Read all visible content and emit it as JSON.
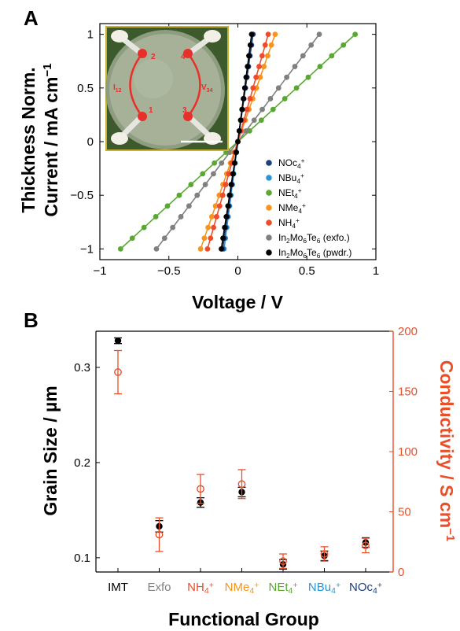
{
  "panelA": {
    "label": "A",
    "ylabel_line1": "Thickness Norm.",
    "ylabel_line2": "Current / mA cm",
    "ylabel_sup": "−1",
    "xlabel": "Voltage / V",
    "xlim": [
      -1,
      1
    ],
    "ylim": [
      -1.1,
      1.1
    ],
    "xticks": [
      "−1",
      "−0.5",
      "0",
      "0.5",
      "1"
    ],
    "yticks": [
      "−1",
      "−0.5",
      "0",
      "0.5",
      "1"
    ],
    "inset": {
      "electrodes": [
        "1",
        "2",
        "3",
        "4"
      ],
      "left_label": "I",
      "left_sub": "12",
      "right_label": "V",
      "right_sub": "34"
    },
    "legend": [
      {
        "base": "NOc",
        "sub": "4",
        "sup": "+",
        "color": "#1d3f7a"
      },
      {
        "base": "NBu",
        "sub": "4",
        "sup": "+",
        "color": "#2b95d6"
      },
      {
        "base": "NEt",
        "sub": "4",
        "sup": "+",
        "color": "#5aa832"
      },
      {
        "base": "NMe",
        "sub": "4",
        "sup": "+",
        "color": "#f7941d"
      },
      {
        "base": "NH",
        "sub": "4",
        "sup": "+",
        "color": "#ee4b2b"
      },
      {
        "parts": [
          "In",
          "2",
          "Mo",
          "6",
          "Te",
          "6",
          " (exfo.)"
        ],
        "color": "#808080"
      },
      {
        "parts": [
          "In",
          "2",
          "Mo",
          "6",
          "Te",
          "6",
          " (pwdr.)"
        ],
        "color": "#000000"
      }
    ]
  },
  "chart_data": [
    {
      "type": "line",
      "title": "",
      "xlabel": "Voltage / V",
      "ylabel": "Thickness Norm. Current / mA cm−1",
      "xlim": [
        -1,
        1
      ],
      "ylim": [
        -1.1,
        1.1
      ],
      "series": [
        {
          "name": "NOc4+",
          "color": "#1d3f7a",
          "v_at_max": 0.11,
          "v_at_min": -0.11,
          "points": 21
        },
        {
          "name": "NBu4+",
          "color": "#2b95d6",
          "v_at_max": 0.1,
          "v_at_min": -0.1,
          "points": 21
        },
        {
          "name": "NEt4+",
          "color": "#5aa832",
          "v_at_max": 0.85,
          "v_at_min": -0.85,
          "points": 21
        },
        {
          "name": "NMe4+",
          "color": "#f7941d",
          "v_at_max": 0.27,
          "v_at_min": -0.27,
          "points": 21
        },
        {
          "name": "NH4+",
          "color": "#ee4b2b",
          "v_at_max": 0.22,
          "v_at_min": -0.22,
          "points": 21
        },
        {
          "name": "In2Mo6Te6 (exfo.)",
          "color": "#808080",
          "v_at_max": 0.59,
          "v_at_min": -0.59,
          "points": 21
        },
        {
          "name": "In2Mo6Te6 (pwdr.)",
          "color": "#000000",
          "v_at_max": 0.1,
          "v_at_min": -0.12,
          "points": 21
        }
      ]
    },
    {
      "type": "scatter",
      "title": "",
      "xlabel": "Functional Group",
      "ylabel": "Grain Size / µm",
      "y2label": "Conductivity / S cm−1",
      "ylim": [
        0.085,
        0.338
      ],
      "y2lim": [
        0,
        200
      ],
      "categories": [
        "IMT",
        "Exfo",
        "NH4+",
        "NMe4+",
        "NEt4+",
        "NBu4+",
        "NOc4+"
      ],
      "grain_size": [
        0.328,
        0.133,
        0.158,
        0.169,
        0.093,
        0.102,
        0.116
      ],
      "grain_size_err": [
        0.003,
        0.006,
        0.005,
        0.005,
        0.005,
        0.005,
        0.005
      ],
      "conductivity": [
        166,
        31,
        69,
        73,
        9,
        15,
        22
      ],
      "conductivity_err": [
        18,
        14,
        12,
        12,
        6,
        6,
        6
      ]
    }
  ],
  "panelB": {
    "label": "B",
    "ylabel": "Grain Size / µm",
    "y2label_main": "Conductivity / S cm",
    "y2label_sup": "−1",
    "xlabel": "Functional Group",
    "yticks": [
      {
        "v": 0.1,
        "t": "0.1"
      },
      {
        "v": 0.2,
        "t": "0.2"
      },
      {
        "v": 0.3,
        "t": "0.3"
      }
    ],
    "y2ticks": [
      {
        "v": 0,
        "t": "0"
      },
      {
        "v": 50,
        "t": "50"
      },
      {
        "v": 100,
        "t": "100"
      },
      {
        "v": 150,
        "t": "150"
      },
      {
        "v": 200,
        "t": "200"
      }
    ],
    "categories": [
      {
        "base": "IMT",
        "sub": "",
        "sup": "",
        "color": "#000000"
      },
      {
        "base": "Exfo",
        "sub": "",
        "sup": "",
        "color": "#808080"
      },
      {
        "base": "NH",
        "sub": "4",
        "sup": "+",
        "color": "#ee4b2b"
      },
      {
        "base": "NMe",
        "sub": "4",
        "sup": "+",
        "color": "#f7941d"
      },
      {
        "base": "NEt",
        "sub": "4",
        "sup": "+",
        "color": "#5aa832"
      },
      {
        "base": "NBu",
        "sub": "4",
        "sup": "+",
        "color": "#2b95d6"
      },
      {
        "base": "NOc",
        "sub": "4",
        "sup": "+",
        "color": "#1d3f7a"
      }
    ],
    "grain_color": "#000000",
    "cond_color": "#e8502a"
  }
}
